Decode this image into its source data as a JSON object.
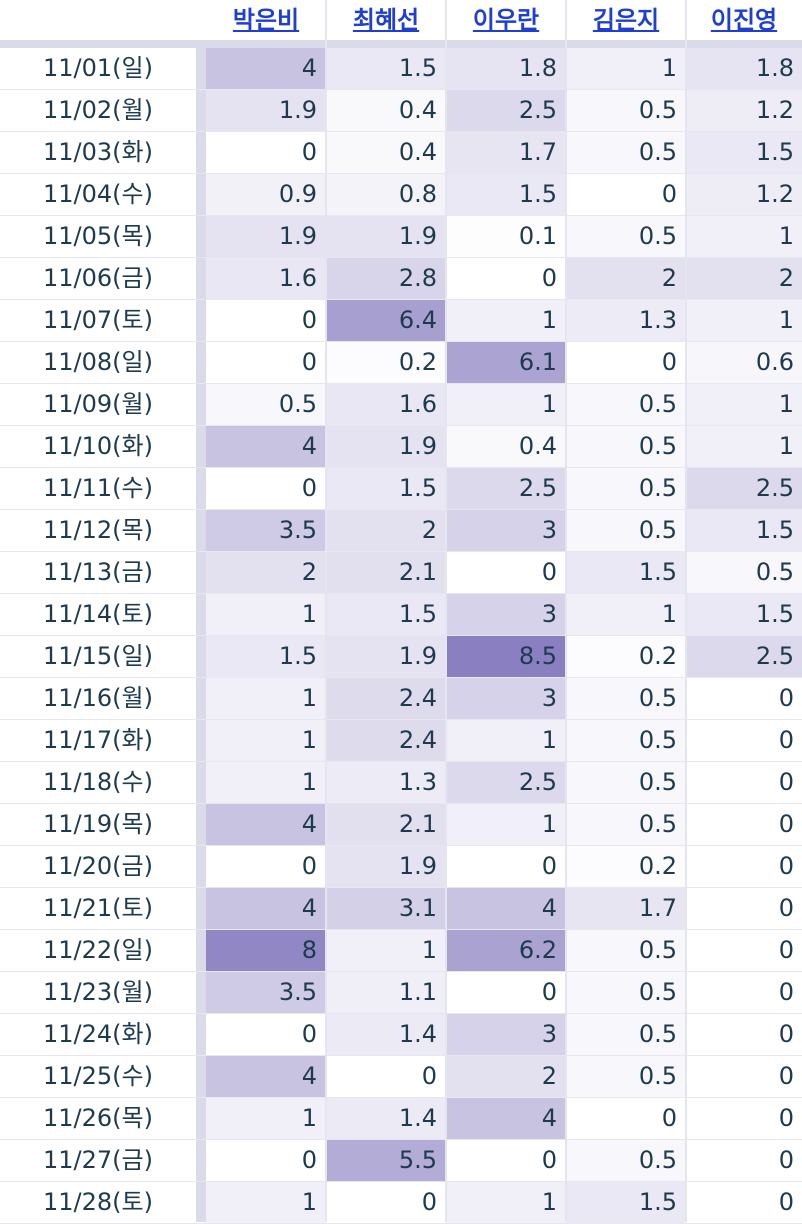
{
  "columns": [
    "박은비",
    "최혜선",
    "이우란",
    "김은지",
    "이진영"
  ],
  "rows": [
    {
      "date": "11/01(일)",
      "values": [
        "4",
        "1.5",
        "1.8",
        "1",
        "1.8"
      ]
    },
    {
      "date": "11/02(월)",
      "values": [
        "1.9",
        "0.4",
        "2.5",
        "0.5",
        "1.2"
      ]
    },
    {
      "date": "11/03(화)",
      "values": [
        "0",
        "0.4",
        "1.7",
        "0.5",
        "1.5"
      ]
    },
    {
      "date": "11/04(수)",
      "values": [
        "0.9",
        "0.8",
        "1.5",
        "0",
        "1.2"
      ]
    },
    {
      "date": "11/05(목)",
      "values": [
        "1.9",
        "1.9",
        "0.1",
        "0.5",
        "1"
      ]
    },
    {
      "date": "11/06(금)",
      "values": [
        "1.6",
        "2.8",
        "0",
        "2",
        "2"
      ]
    },
    {
      "date": "11/07(토)",
      "values": [
        "0",
        "6.4",
        "1",
        "1.3",
        "1"
      ]
    },
    {
      "date": "11/08(일)",
      "values": [
        "0",
        "0.2",
        "6.1",
        "0",
        "0.6"
      ]
    },
    {
      "date": "11/09(월)",
      "values": [
        "0.5",
        "1.6",
        "1",
        "0.5",
        "1"
      ]
    },
    {
      "date": "11/10(화)",
      "values": [
        "4",
        "1.9",
        "0.4",
        "0.5",
        "1"
      ]
    },
    {
      "date": "11/11(수)",
      "values": [
        "0",
        "1.5",
        "2.5",
        "0.5",
        "2.5"
      ]
    },
    {
      "date": "11/12(목)",
      "values": [
        "3.5",
        "2",
        "3",
        "0.5",
        "1.5"
      ]
    },
    {
      "date": "11/13(금)",
      "values": [
        "2",
        "2.1",
        "0",
        "1.5",
        "0.5"
      ]
    },
    {
      "date": "11/14(토)",
      "values": [
        "1",
        "1.5",
        "3",
        "1",
        "1.5"
      ]
    },
    {
      "date": "11/15(일)",
      "values": [
        "1.5",
        "1.9",
        "8.5",
        "0.2",
        "2.5"
      ]
    },
    {
      "date": "11/16(월)",
      "values": [
        "1",
        "2.4",
        "3",
        "0.5",
        "0"
      ]
    },
    {
      "date": "11/17(화)",
      "values": [
        "1",
        "2.4",
        "1",
        "0.5",
        "0"
      ]
    },
    {
      "date": "11/18(수)",
      "values": [
        "1",
        "1.3",
        "2.5",
        "0.5",
        "0"
      ]
    },
    {
      "date": "11/19(목)",
      "values": [
        "4",
        "2.1",
        "1",
        "0.5",
        "0"
      ]
    },
    {
      "date": "11/20(금)",
      "values": [
        "0",
        "1.9",
        "0",
        "0.2",
        "0"
      ]
    },
    {
      "date": "11/21(토)",
      "values": [
        "4",
        "3.1",
        "4",
        "1.7",
        "0"
      ]
    },
    {
      "date": "11/22(일)",
      "values": [
        "8",
        "1",
        "6.2",
        "0.5",
        "0"
      ]
    },
    {
      "date": "11/23(월)",
      "values": [
        "3.5",
        "1.1",
        "0",
        "0.5",
        "0"
      ]
    },
    {
      "date": "11/24(화)",
      "values": [
        "0",
        "1.4",
        "3",
        "0.5",
        "0"
      ]
    },
    {
      "date": "11/25(수)",
      "values": [
        "4",
        "0",
        "2",
        "0.5",
        "0"
      ]
    },
    {
      "date": "11/26(목)",
      "values": [
        "1",
        "1.4",
        "4",
        "0",
        "0"
      ]
    },
    {
      "date": "11/27(금)",
      "values": [
        "0",
        "5.5",
        "0",
        "0.5",
        "0"
      ]
    },
    {
      "date": "11/28(토)",
      "values": [
        "1",
        "0",
        "1",
        "1.5",
        "0"
      ]
    }
  ],
  "colors": {
    "header_link": "#1f3fd1",
    "text": "#1d3a4f",
    "heat_max": "#8a7fc0"
  }
}
